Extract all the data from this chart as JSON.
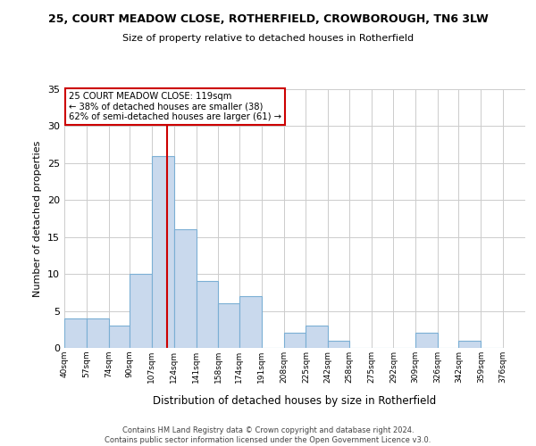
{
  "title": "25, COURT MEADOW CLOSE, ROTHERFIELD, CROWBOROUGH, TN6 3LW",
  "subtitle": "Size of property relative to detached houses in Rotherfield",
  "xlabel": "Distribution of detached houses by size in Rotherfield",
  "ylabel": "Number of detached properties",
  "bin_labels": [
    "40sqm",
    "57sqm",
    "74sqm",
    "90sqm",
    "107sqm",
    "124sqm",
    "141sqm",
    "158sqm",
    "174sqm",
    "191sqm",
    "208sqm",
    "225sqm",
    "242sqm",
    "258sqm",
    "275sqm",
    "292sqm",
    "309sqm",
    "326sqm",
    "342sqm",
    "359sqm",
    "376sqm"
  ],
  "bin_edges": [
    40,
    57,
    74,
    90,
    107,
    124,
    141,
    158,
    174,
    191,
    208,
    225,
    242,
    258,
    275,
    292,
    309,
    326,
    342,
    359,
    376
  ],
  "counts": [
    4,
    4,
    3,
    10,
    26,
    16,
    9,
    6,
    7,
    0,
    2,
    3,
    1,
    0,
    0,
    0,
    2,
    0,
    1,
    0
  ],
  "bar_color": "#c9d9ed",
  "bar_edge_color": "#7bafd4",
  "property_line_x": 119,
  "annotation_lines": [
    "25 COURT MEADOW CLOSE: 119sqm",
    "← 38% of detached houses are smaller (38)",
    "62% of semi-detached houses are larger (61) →"
  ],
  "annotation_box_color": "#ffffff",
  "annotation_box_edge_color": "#cc0000",
  "property_line_color": "#cc0000",
  "ylim": [
    0,
    35
  ],
  "yticks": [
    0,
    5,
    10,
    15,
    20,
    25,
    30,
    35
  ],
  "footer_line1": "Contains HM Land Registry data © Crown copyright and database right 2024.",
  "footer_line2": "Contains public sector information licensed under the Open Government Licence v3.0.",
  "grid_color": "#cccccc",
  "background_color": "#ffffff"
}
